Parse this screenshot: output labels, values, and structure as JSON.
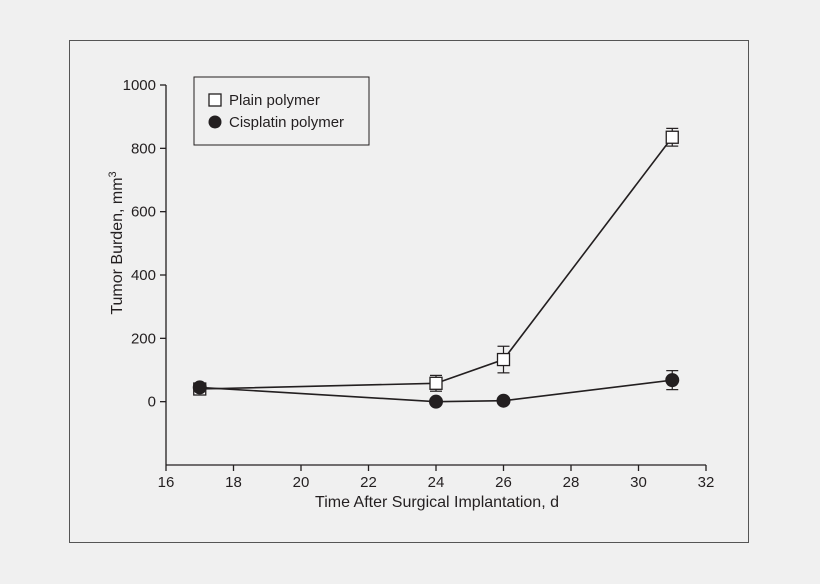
{
  "chart_data": {
    "type": "line",
    "xlabel": "Time After Surgical Implantation, d",
    "ylabel": "Tumor Burden, mm",
    "ylabel_superscript": "3",
    "xlim": [
      16,
      32
    ],
    "ylim": [
      -200,
      1000
    ],
    "xticks": [
      16,
      18,
      20,
      22,
      24,
      26,
      28,
      30,
      32
    ],
    "yticks": [
      0,
      200,
      400,
      600,
      800,
      1000
    ],
    "grid": false,
    "legend_position": "top-left",
    "colors": {
      "line": "#231f20",
      "axis": "#231f20",
      "background": "#f0f0f0",
      "frame": "#555555"
    },
    "series": [
      {
        "name": "Plain polymer",
        "marker": "open-square",
        "x": [
          17,
          24,
          26,
          31
        ],
        "y": [
          40,
          58,
          133,
          835
        ],
        "err": [
          0,
          25,
          42,
          28
        ]
      },
      {
        "name": "Cisplatin polymer",
        "marker": "filled-circle",
        "x": [
          17,
          24,
          26,
          31
        ],
        "y": [
          45,
          0,
          3,
          68
        ],
        "err": [
          0,
          0,
          0,
          30
        ]
      }
    ]
  }
}
